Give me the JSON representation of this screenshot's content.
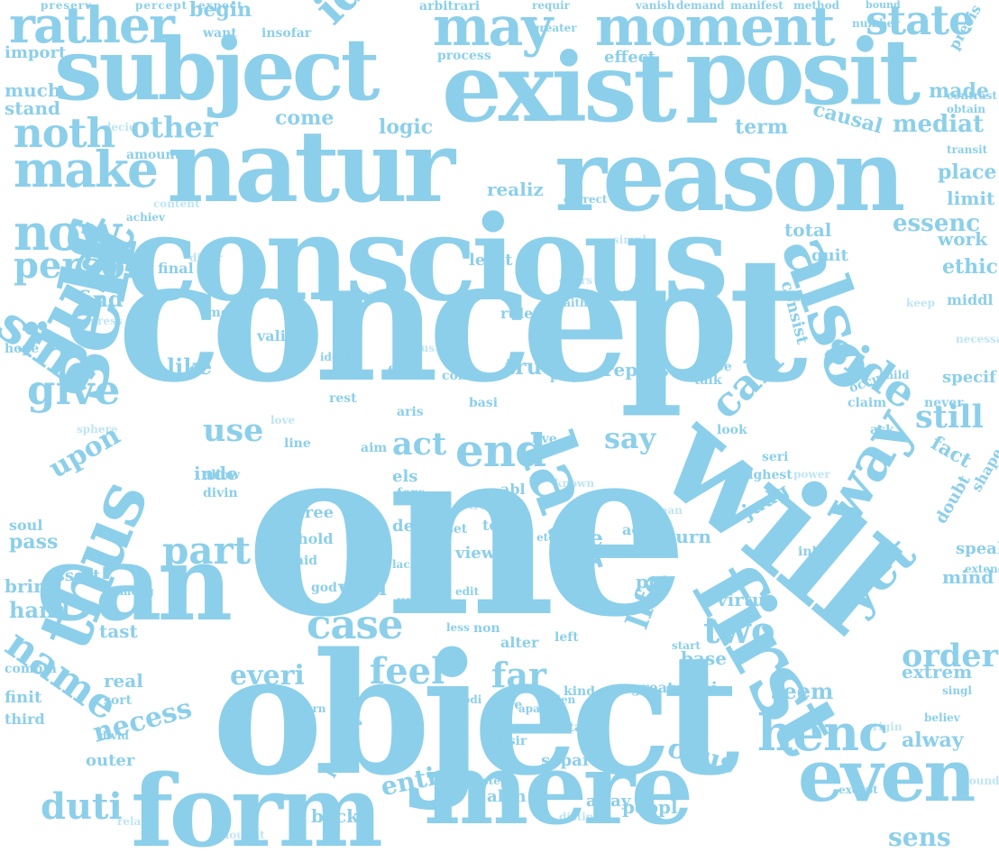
{
  "word_color": "#8ccfea",
  "background_color": "#ffffff",
  "words": [
    {
      "text": "one"
    },
    {
      "text": "concept"
    },
    {
      "text": "object"
    },
    {
      "text": "conscious"
    },
    {
      "text": "will"
    },
    {
      "text": "natur"
    },
    {
      "text": "reason"
    },
    {
      "text": "exist"
    },
    {
      "text": "posit"
    },
    {
      "text": "subject"
    },
    {
      "text": "can"
    },
    {
      "text": "form"
    },
    {
      "text": "mere"
    },
    {
      "text": "first"
    },
    {
      "text": "self"
    },
    {
      "text": "law"
    },
    {
      "text": "also"
    },
    {
      "text": "thus"
    },
    {
      "text": "just"
    },
    {
      "text": "even"
    },
    {
      "text": "moment"
    },
    {
      "text": "may"
    },
    {
      "text": "rather"
    },
    {
      "text": "make"
    },
    {
      "text": "now"
    },
    {
      "text": "idea"
    },
    {
      "text": "state"
    },
    {
      "text": "sinc"
    },
    {
      "text": "way"
    },
    {
      "text": "end"
    },
    {
      "text": "noth"
    },
    {
      "text": "person"
    },
    {
      "text": "give"
    },
    {
      "text": "side"
    },
    {
      "text": "call"
    },
    {
      "text": "yet"
    },
    {
      "text": "henc"
    },
    {
      "text": "name"
    },
    {
      "text": "case"
    },
    {
      "text": "two"
    },
    {
      "text": "feel"
    },
    {
      "text": "far"
    },
    {
      "text": "part"
    },
    {
      "text": "duti"
    },
    {
      "text": "everi"
    },
    {
      "text": "act"
    },
    {
      "text": "order"
    },
    {
      "text": "still"
    },
    {
      "text": "other"
    },
    {
      "text": "say"
    },
    {
      "text": "use"
    },
    {
      "text": "upon"
    },
    {
      "text": "life"
    },
    {
      "text": "caus"
    },
    {
      "text": "necess"
    },
    {
      "text": "entir"
    },
    {
      "text": "essenc"
    },
    {
      "text": "mediat"
    },
    {
      "text": "causal"
    },
    {
      "text": "term"
    },
    {
      "text": "logic"
    },
    {
      "text": "come"
    },
    {
      "text": "begin"
    },
    {
      "text": "realiz"
    },
    {
      "text": "least"
    },
    {
      "text": "total"
    },
    {
      "text": "ethic"
    },
    {
      "text": "true"
    },
    {
      "text": "repres"
    },
    {
      "text": "like"
    },
    {
      "text": "find"
    },
    {
      "text": "consist"
    },
    {
      "text": "sens"
    },
    {
      "text": "alway"
    },
    {
      "text": "seem"
    },
    {
      "text": "well"
    },
    {
      "text": "see"
    },
    {
      "text": "judg"
    },
    {
      "text": "fact"
    },
    {
      "text": "real"
    },
    {
      "text": "hand"
    },
    {
      "text": "pass"
    },
    {
      "text": "tast"
    },
    {
      "text": "soul"
    },
    {
      "text": "bring"
    },
    {
      "text": "assert"
    },
    {
      "text": "finit"
    },
    {
      "text": "third"
    },
    {
      "text": "outer"
    },
    {
      "text": "perceiv"
    },
    {
      "text": "back"
    },
    {
      "text": "alon"
    },
    {
      "text": "separ"
    },
    {
      "text": "away"
    },
    {
      "text": "peopl"
    },
    {
      "text": "base"
    },
    {
      "text": "mani"
    },
    {
      "text": "great"
    },
    {
      "text": "turn"
    },
    {
      "text": "put"
    },
    {
      "text": "virtu"
    },
    {
      "text": "mind"
    },
    {
      "text": "extrem"
    },
    {
      "text": "inde"
    },
    {
      "text": "free"
    },
    {
      "text": "hold"
    },
    {
      "text": "deriv"
    },
    {
      "text": "view"
    },
    {
      "text": "els"
    },
    {
      "text": "abl"
    },
    {
      "text": "forc"
    },
    {
      "text": "line"
    },
    {
      "text": "divin"
    },
    {
      "text": "allow"
    },
    {
      "text": "aris"
    },
    {
      "text": "live"
    },
    {
      "text": "con"
    },
    {
      "text": "basi"
    },
    {
      "text": "aim"
    },
    {
      "text": "rest"
    },
    {
      "text": "fall"
    },
    {
      "text": "play"
    },
    {
      "text": "occur"
    },
    {
      "text": "specif"
    },
    {
      "text": "three"
    },
    {
      "text": "claim"
    },
    {
      "text": "ask"
    },
    {
      "text": "talk"
    },
    {
      "text": "never"
    },
    {
      "text": "limit"
    },
    {
      "text": "place"
    },
    {
      "text": "work"
    },
    {
      "text": "quit"
    },
    {
      "text": "final"
    },
    {
      "text": "middl"
    },
    {
      "text": "made"
    },
    {
      "text": "much"
    },
    {
      "text": "import"
    },
    {
      "text": "stand"
    },
    {
      "text": "process"
    },
    {
      "text": "effect"
    },
    {
      "text": "want"
    },
    {
      "text": "insofar"
    },
    {
      "text": "precis"
    },
    {
      "text": "amount"
    },
    {
      "text": "greater"
    },
    {
      "text": "requir"
    },
    {
      "text": "arbitrari"
    },
    {
      "text": "vanish"
    },
    {
      "text": "demand"
    },
    {
      "text": "manifest"
    },
    {
      "text": "method"
    },
    {
      "text": "number"
    },
    {
      "text": "contrast"
    },
    {
      "text": "obtain"
    },
    {
      "text": "transit"
    },
    {
      "text": "achiev"
    },
    {
      "text": "correct"
    },
    {
      "text": "valid"
    },
    {
      "text": "rule"
    },
    {
      "text": "faith"
    },
    {
      "text": "mode"
    },
    {
      "text": "ideal"
    },
    {
      "text": "hope"
    },
    {
      "text": "combin"
    },
    {
      "text": "among"
    },
    {
      "text": "said"
    },
    {
      "text": "lack"
    },
    {
      "text": "test"
    },
    {
      "text": "set"
    },
    {
      "text": "anyth"
    },
    {
      "text": "etc"
    },
    {
      "text": "god"
    },
    {
      "text": "edit"
    },
    {
      "text": "unit"
    },
    {
      "text": "non"
    },
    {
      "text": "alter"
    },
    {
      "text": "left"
    },
    {
      "text": "start"
    },
    {
      "text": "activ"
    },
    {
      "text": "inher"
    },
    {
      "text": "speak"
    },
    {
      "text": "doubt"
    },
    {
      "text": "shape"
    },
    {
      "text": "extend"
    },
    {
      "text": "highest"
    },
    {
      "text": "look"
    },
    {
      "text": "seri"
    },
    {
      "text": "child"
    },
    {
      "text": "kind"
    },
    {
      "text": "attain"
    },
    {
      "text": "alien"
    },
    {
      "text": "sure"
    },
    {
      "text": "apart"
    },
    {
      "text": "desir"
    },
    {
      "text": "step"
    },
    {
      "text": "except"
    },
    {
      "text": "singl"
    },
    {
      "text": "believ"
    },
    {
      "text": "sort"
    },
    {
      "text": "divid"
    },
    {
      "text": "intern"
    },
    {
      "text": "less"
    },
    {
      "text": "bodi"
    },
    {
      "text": "preserv"
    },
    {
      "text": "percept"
    },
    {
      "text": "expect"
    },
    {
      "text": "bound"
    },
    {
      "text": "decid"
    },
    {
      "text": "express"
    },
    {
      "text": "true"
    },
    {
      "text": "known"
    },
    {
      "text": "keep"
    },
    {
      "text": "cours"
    },
    {
      "text": "necessari"
    },
    {
      "text": "exclus"
    },
    {
      "text": "distinct"
    },
    {
      "text": "origin"
    },
    {
      "text": "ground"
    },
    {
      "text": "relat"
    },
    {
      "text": "sinc"
    },
    {
      "text": "mean"
    },
    {
      "text": "thought"
    },
    {
      "text": "sphere"
    },
    {
      "text": "love"
    },
    {
      "text": "power"
    },
    {
      "text": "proper"
    },
    {
      "text": "simpl"
    },
    {
      "text": "content"
    },
    {
      "text": "differ"
    }
  ]
}
